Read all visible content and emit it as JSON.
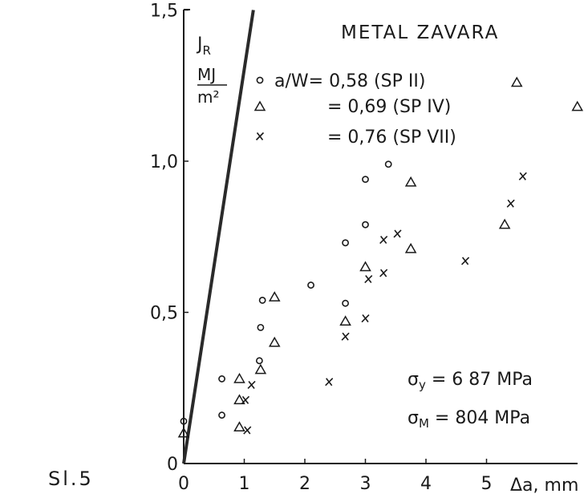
{
  "figure_label": "Sl.5",
  "chart_data": {
    "type": "scatter",
    "title": "METAL ZAVARA",
    "ylabel": "J",
    "ylabel_sub": "R",
    "y_unit_num": "MJ",
    "y_unit_den": "m²",
    "xlabel": "Δa, mm",
    "xlim": [
      0,
      6.5
    ],
    "ylim": [
      0,
      1.5
    ],
    "x_ticks": [
      "0",
      "1",
      "2",
      "3",
      "4",
      "5"
    ],
    "x_tick_values": [
      0,
      1,
      2,
      3,
      4,
      5
    ],
    "y_ticks": [
      "0",
      "0,5",
      "1,0",
      "1,5"
    ],
    "y_tick_values": [
      0,
      0.5,
      1.0,
      1.5
    ],
    "grid": false,
    "legend_position": "top-right",
    "series": [
      {
        "name": "a/W= 0,58 (SP II)",
        "marker": "circle",
        "points": [
          [
            0,
            0.14
          ],
          [
            0.63,
            0.28
          ],
          [
            0.63,
            0.16
          ],
          [
            1.25,
            0.34
          ],
          [
            1.27,
            0.45
          ],
          [
            1.3,
            0.54
          ],
          [
            2.1,
            0.59
          ],
          [
            2.67,
            0.53
          ],
          [
            2.67,
            0.73
          ],
          [
            3.0,
            0.79
          ],
          [
            3.0,
            0.94
          ],
          [
            3.38,
            0.99
          ]
        ]
      },
      {
        "name": "= 0,69 (SP IV)",
        "marker": "triangle",
        "points": [
          [
            0,
            0.1
          ],
          [
            0.92,
            0.28
          ],
          [
            0.92,
            0.21
          ],
          [
            0.92,
            0.12
          ],
          [
            1.27,
            0.31
          ],
          [
            1.5,
            0.55
          ],
          [
            1.5,
            0.4
          ],
          [
            2.67,
            0.47
          ],
          [
            3.0,
            0.65
          ],
          [
            3.75,
            0.71
          ],
          [
            3.75,
            0.93
          ],
          [
            5.3,
            0.79
          ],
          [
            5.5,
            1.26
          ],
          [
            6.5,
            1.18
          ]
        ]
      },
      {
        "name": "= 0,76 (SP VII)",
        "marker": "x",
        "points": [
          [
            1.02,
            0.21
          ],
          [
            1.05,
            0.11
          ],
          [
            1.12,
            0.26
          ],
          [
            2.4,
            0.27
          ],
          [
            2.67,
            0.42
          ],
          [
            3.0,
            0.48
          ],
          [
            3.05,
            0.61
          ],
          [
            3.3,
            0.63
          ],
          [
            3.3,
            0.74
          ],
          [
            3.53,
            0.76
          ],
          [
            4.65,
            0.67
          ],
          [
            5.4,
            0.86
          ],
          [
            5.6,
            0.95
          ]
        ]
      }
    ],
    "blunting_line": {
      "x": [
        0,
        1.15
      ],
      "y": [
        0,
        1.5
      ]
    },
    "annotations": [
      {
        "symbol": "σ",
        "sub": "y",
        "text": " = 6 87 MPa"
      },
      {
        "symbol": "σ",
        "sub": "M",
        "text": " = 804 MPa"
      }
    ]
  }
}
